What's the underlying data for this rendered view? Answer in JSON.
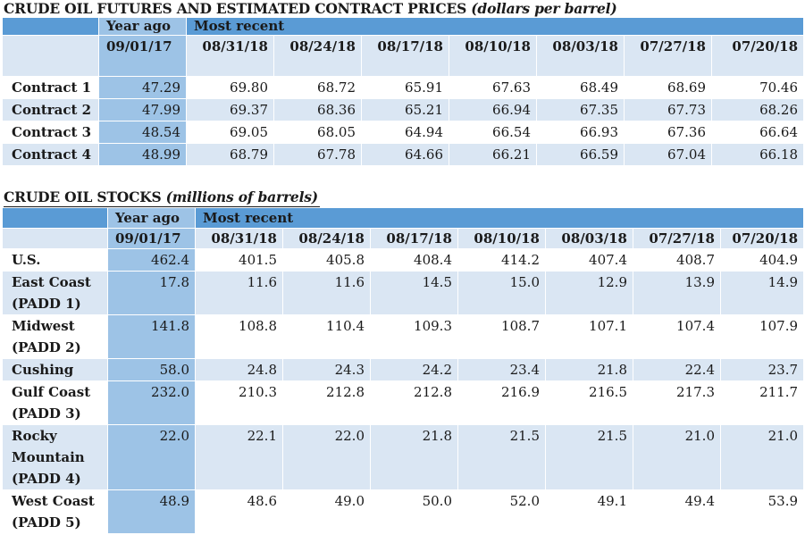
{
  "futures": {
    "title": "CRUDE OIL FUTURES AND ESTIMATED CONTRACT PRICES",
    "unit": "(dollars per barrel)",
    "year_ago_label": "Year ago",
    "most_recent_label": "Most recent",
    "dates": [
      "09/01/17",
      "08/31/18",
      "08/24/18",
      "08/17/18",
      "08/10/18",
      "08/03/18",
      "07/27/18",
      "07/20/18"
    ],
    "rows": [
      {
        "label": "Contract 1",
        "values": [
          "47.29",
          "69.80",
          "68.72",
          "65.91",
          "67.63",
          "68.49",
          "68.69",
          "70.46"
        ]
      },
      {
        "label": "Contract 2",
        "values": [
          "47.99",
          "69.37",
          "68.36",
          "65.21",
          "66.94",
          "67.35",
          "67.73",
          "68.26"
        ]
      },
      {
        "label": "Contract 3",
        "values": [
          "48.54",
          "69.05",
          "68.05",
          "64.94",
          "66.54",
          "66.93",
          "67.36",
          "66.64"
        ]
      },
      {
        "label": "Contract 4",
        "values": [
          "48.99",
          "68.79",
          "67.78",
          "64.66",
          "66.21",
          "66.59",
          "67.04",
          "66.18"
        ]
      }
    ]
  },
  "stocks": {
    "title": "CRUDE OIL STOCKS",
    "unit": "(millions of barrels)",
    "year_ago_label": "Year ago",
    "most_recent_label": "Most recent",
    "dates": [
      "09/01/17",
      "08/31/18",
      "08/24/18",
      "08/17/18",
      "08/10/18",
      "08/03/18",
      "07/27/18",
      "07/20/18"
    ],
    "rows": [
      {
        "label": "U.S.",
        "values": [
          "462.4",
          "401.5",
          "405.8",
          "408.4",
          "414.2",
          "407.4",
          "408.7",
          "404.9"
        ]
      },
      {
        "label": "East Coast (PADD 1)",
        "values": [
          "17.8",
          "11.6",
          "11.6",
          "14.5",
          "15.0",
          "12.9",
          "13.9",
          "14.9"
        ]
      },
      {
        "label": "Midwest (PADD 2)",
        "values": [
          "141.8",
          "108.8",
          "110.4",
          "109.3",
          "108.7",
          "107.1",
          "107.4",
          "107.9"
        ]
      },
      {
        "label": "Cushing",
        "values": [
          "58.0",
          "24.8",
          "24.3",
          "24.2",
          "23.4",
          "21.8",
          "22.4",
          "23.7"
        ]
      },
      {
        "label": "Gulf Coast (PADD 3)",
        "values": [
          "232.0",
          "210.3",
          "212.8",
          "212.8",
          "216.9",
          "216.5",
          "217.3",
          "211.7"
        ]
      },
      {
        "label": "Rocky Mountain (PADD 4)",
        "values": [
          "22.0",
          "22.1",
          "22.0",
          "21.8",
          "21.5",
          "21.5",
          "21.0",
          "21.0"
        ]
      },
      {
        "label": "West Coast (PADD 5)",
        "values": [
          "48.9",
          "48.6",
          "49.0",
          "50.0",
          "52.0",
          "49.1",
          "49.4",
          "53.9"
        ]
      }
    ]
  }
}
